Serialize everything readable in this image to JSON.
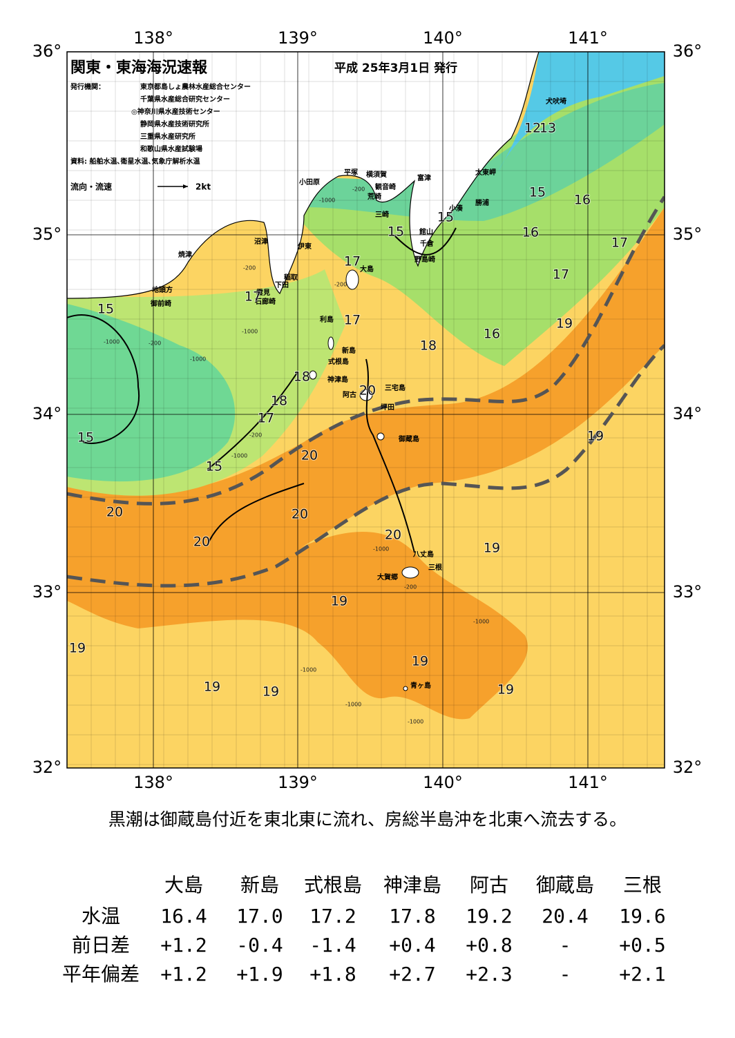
{
  "header": {
    "title": "関東・東海海況速報",
    "date": "平成 25年3月1日 発行",
    "issuers": [
      "発行機関：",
      "東京都島しょ農林水産総合センター",
      "千葉県水産総合研究センター",
      "◎神奈川県水産技術センター",
      "静岡県水産技術研究所",
      "三重県水産研究所",
      "和歌山県水産試験場"
    ],
    "source": "資料: 船舶水温､衛星水温､気象庁解析水温",
    "legend": "流向・流速",
    "legend_unit": "2kt"
  },
  "map": {
    "lon_labels": [
      "138°",
      "139°",
      "140°",
      "141°"
    ],
    "lat_labels": [
      "36°",
      "35°",
      "34°",
      "33°",
      "32°"
    ],
    "places": [
      "犬吠埼",
      "太東岬",
      "勝浦",
      "小湊",
      "館山",
      "千倉",
      "野島崎",
      "富津",
      "観音崎",
      "横須賀",
      "平塚",
      "荒崎",
      "三崎",
      "小田原",
      "沼津",
      "伊東",
      "稲取",
      "下田",
      "雲見",
      "石廊崎",
      "焼津",
      "地頭方",
      "御前崎",
      "大島",
      "利島",
      "新島",
      "式根島",
      "神津島",
      "三宅島",
      "阿古",
      "坪田",
      "御蔵島",
      "八丈島",
      "三根",
      "大賀郷",
      "青ヶ島"
    ],
    "temperature_labels": [
      "12",
      "13",
      "15",
      "16",
      "15",
      "15",
      "16",
      "17",
      "17",
      "17",
      "17",
      "15",
      "17",
      "19",
      "16",
      "18",
      "18",
      "20",
      "18",
      "17",
      "15",
      "19",
      "20",
      "15",
      "20",
      "20",
      "20",
      "20",
      "19",
      "19",
      "19",
      "19",
      "19",
      "19",
      "19"
    ],
    "depth_labels": [
      "-200",
      "-1000",
      "-200",
      "-200",
      "-1000",
      "-200",
      "-1000",
      "-1000",
      "-200",
      "-1000",
      "-200",
      "-1000",
      "-1000",
      "-1000",
      "-1000",
      "-1000"
    ]
  },
  "caption": "黒潮は御蔵島付近を東北東に流れ、房総半島沖を北東へ流去する。",
  "table": {
    "header": [
      "大島",
      "新島",
      "式根島",
      "神津島",
      "阿古",
      "御蔵島",
      "三根"
    ],
    "rows": [
      [
        "水温",
        "16.4",
        "17.0",
        "17.2",
        "17.8",
        "19.2",
        "20.4",
        "19.6"
      ],
      [
        "前日差",
        "+1.2",
        "-0.4",
        "-1.4",
        "+0.4",
        "+0.8",
        "-",
        "+0.5"
      ],
      [
        "平年偏差",
        "+1.2",
        "+1.9",
        "+1.8",
        "+2.7",
        "+2.3",
        "-",
        "+2.1"
      ]
    ]
  }
}
